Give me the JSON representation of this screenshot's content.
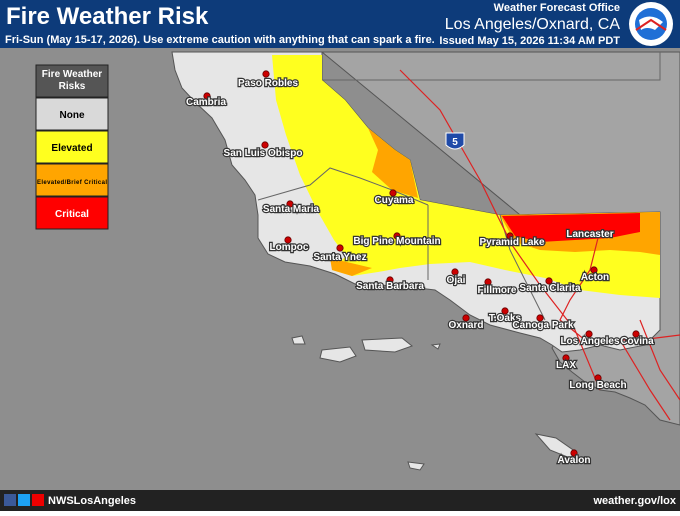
{
  "header": {
    "title": "Fire Weather Risk",
    "subtitle": "Fri-Sun (May 15-17, 2026). Use extreme caution with anything that can spark a fire.",
    "office": "Weather Forecast Office",
    "location": "Los Angeles/Oxnard, CA",
    "issued": "Issued May 15, 2026 11:34 AM PDT"
  },
  "legend": {
    "title": "Fire Weather Risks",
    "items": [
      {
        "label": "None",
        "color": "#d9d9d9"
      },
      {
        "label": "Elevated",
        "color": "#ffff1f"
      },
      {
        "label": "Elevated/Brief Critical",
        "color": "#ffa500"
      },
      {
        "label": "Critical",
        "color": "#ff0000"
      }
    ]
  },
  "highway_shield": "5",
  "cities": [
    "Paso Robles",
    "Cambria",
    "San Luis Obispo",
    "Santa Maria",
    "Lompoc",
    "Santa Ynez",
    "Cuyama",
    "Big Pine Mountain",
    "Pyramid Lake",
    "Lancaster",
    "Santa Barbara",
    "Ojai",
    "Fillmore",
    "Santa Clarita",
    "Acton",
    "T.Oaks",
    "Oxnard",
    "Canoga Park",
    "Los Angeles",
    "Covina",
    "LAX",
    "Long Beach",
    "Avalon"
  ],
  "footer": {
    "handle": "NWSLosAngeles",
    "url": "weather.gov/lox"
  }
}
